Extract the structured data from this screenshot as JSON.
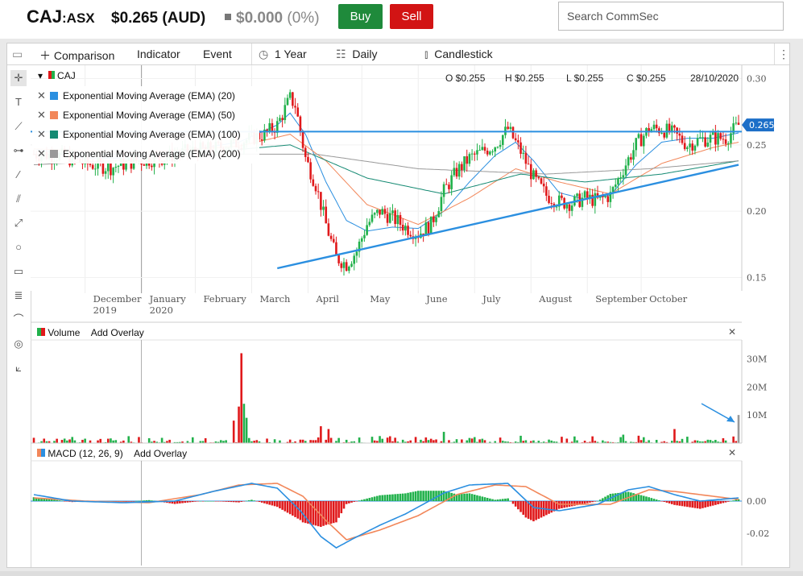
{
  "header": {
    "ticker": "CAJ",
    "exchange": ":ASX",
    "price": "$0.265 (AUD)",
    "change_value": "$0.000",
    "change_pct": "(0%)",
    "buy_label": "Buy",
    "sell_label": "Sell",
    "search_placeholder": "Search CommSec"
  },
  "toolbar": {
    "comparison": "Comparison",
    "indicator": "Indicator",
    "event": "Event",
    "period": "1 Year",
    "interval": "Daily",
    "chart_type": "Candlestick"
  },
  "main_panel": {
    "symbol": "CAJ",
    "open": "O $0.255",
    "high": "H $0.255",
    "low": "L $0.255",
    "close": "C $0.255",
    "date": "28/10/2020",
    "legend": [
      {
        "label": "Exponential Moving Average (EMA) (20)",
        "color": "#2b8fe0"
      },
      {
        "label": "Exponential Moving Average (EMA) (50)",
        "color": "#f2875a"
      },
      {
        "label": "Exponential Moving Average (EMA) (100)",
        "color": "#158a73"
      },
      {
        "label": "Exponential Moving Average (EMA) (200)",
        "color": "#999999"
      }
    ],
    "last_price_tag": "0.265"
  },
  "volume_panel": {
    "title": "Volume",
    "add_overlay": "Add Overlay"
  },
  "macd_panel": {
    "title": "MACD (12, 26, 9)",
    "add_overlay": "Add Overlay"
  },
  "colors": {
    "up": "#21b14b",
    "down": "#e0191b",
    "trend": "#2b8fe0"
  },
  "chart_data": [
    {
      "type": "candlestick",
      "title": "CAJ",
      "x_ticks": [
        "December 2019",
        "January 2020",
        "February",
        "March",
        "April",
        "May",
        "June",
        "July",
        "August",
        "September",
        "October"
      ],
      "y_ticks": [
        0.15,
        0.2,
        0.25,
        0.3
      ],
      "ylim": [
        0.14,
        0.31
      ],
      "price_path": [
        [
          0,
          0.243
        ],
        [
          10,
          0.242
        ],
        [
          20,
          0.236
        ],
        [
          30,
          0.233
        ],
        [
          40,
          0.238
        ],
        [
          50,
          0.24
        ],
        [
          60,
          0.245
        ],
        [
          70,
          0.247
        ],
        [
          80,
          0.252
        ],
        [
          90,
          0.258
        ],
        [
          95,
          0.265
        ],
        [
          100,
          0.285
        ],
        [
          102,
          0.28
        ],
        [
          106,
          0.24
        ],
        [
          110,
          0.22
        ],
        [
          114,
          0.19
        ],
        [
          118,
          0.165
        ],
        [
          122,
          0.16
        ],
        [
          126,
          0.17
        ],
        [
          130,
          0.19
        ],
        [
          135,
          0.2
        ],
        [
          140,
          0.195
        ],
        [
          145,
          0.188
        ],
        [
          150,
          0.183
        ],
        [
          155,
          0.19
        ],
        [
          160,
          0.215
        ],
        [
          165,
          0.23
        ],
        [
          170,
          0.24
        ],
        [
          175,
          0.245
        ],
        [
          180,
          0.25
        ],
        [
          185,
          0.262
        ],
        [
          190,
          0.245
        ],
        [
          195,
          0.225
        ],
        [
          200,
          0.212
        ],
        [
          205,
          0.207
        ],
        [
          210,
          0.206
        ],
        [
          215,
          0.21
        ],
        [
          220,
          0.208
        ],
        [
          225,
          0.212
        ],
        [
          230,
          0.232
        ],
        [
          235,
          0.25
        ],
        [
          240,
          0.262
        ],
        [
          245,
          0.262
        ],
        [
          250,
          0.258
        ],
        [
          255,
          0.25
        ],
        [
          260,
          0.254
        ],
        [
          265,
          0.255
        ],
        [
          270,
          0.255
        ],
        [
          275,
          0.265
        ]
      ],
      "ema": [
        {
          "name": "Exponential Moving Average (EMA) (20)",
          "values": [
            [
              0,
              0.247
            ],
            [
              20,
              0.24
            ],
            [
              40,
              0.24
            ],
            [
              60,
              0.246
            ],
            [
              80,
              0.252
            ],
            [
              95,
              0.265
            ],
            [
              100,
              0.274
            ],
            [
              106,
              0.258
            ],
            [
              114,
              0.222
            ],
            [
              122,
              0.193
            ],
            [
              130,
              0.185
            ],
            [
              140,
              0.188
            ],
            [
              150,
              0.187
            ],
            [
              160,
              0.2
            ],
            [
              170,
              0.222
            ],
            [
              180,
              0.242
            ],
            [
              188,
              0.252
            ],
            [
              195,
              0.238
            ],
            [
              205,
              0.214
            ],
            [
              215,
              0.209
            ],
            [
              225,
              0.212
            ],
            [
              235,
              0.235
            ],
            [
              245,
              0.252
            ],
            [
              255,
              0.255
            ],
            [
              265,
              0.255
            ],
            [
              275,
              0.259
            ]
          ]
        },
        {
          "name": "Exponential Moving Average (EMA) (50)",
          "values": [
            [
              0,
              0.247
            ],
            [
              40,
              0.244
            ],
            [
              80,
              0.249
            ],
            [
              100,
              0.258
            ],
            [
              114,
              0.238
            ],
            [
              130,
              0.205
            ],
            [
              150,
              0.19
            ],
            [
              170,
              0.21
            ],
            [
              188,
              0.232
            ],
            [
              205,
              0.222
            ],
            [
              225,
              0.213
            ],
            [
              245,
              0.236
            ],
            [
              265,
              0.248
            ],
            [
              275,
              0.252
            ]
          ]
        },
        {
          "name": "Exponential Moving Average (EMA) (100)",
          "values": [
            [
              0,
              0.243
            ],
            [
              60,
              0.243
            ],
            [
              100,
              0.25
            ],
            [
              130,
              0.225
            ],
            [
              160,
              0.213
            ],
            [
              190,
              0.228
            ],
            [
              215,
              0.222
            ],
            [
              245,
              0.228
            ],
            [
              275,
              0.238
            ]
          ]
        },
        {
          "name": "Exponential Moving Average (EMA) (200)",
          "values": [
            [
              0,
              0.235
            ],
            [
              80,
              0.243
            ],
            [
              110,
              0.243
            ],
            [
              150,
              0.232
            ],
            [
              200,
              0.228
            ],
            [
              240,
              0.232
            ],
            [
              275,
              0.238
            ]
          ]
        }
      ],
      "horizontal_line": 0.26,
      "trend_line": [
        [
          95,
          0.157
        ],
        [
          275,
          0.235
        ]
      ]
    },
    {
      "type": "bar",
      "title": "Volume",
      "y_ticks": [
        "10M",
        "20M",
        "30M"
      ],
      "spikes": [
        [
          78,
          8
        ],
        [
          80,
          13
        ],
        [
          81,
          32
        ],
        [
          82,
          14
        ],
        [
          83,
          9
        ],
        [
          112,
          6
        ],
        [
          115,
          5
        ],
        [
          160,
          4
        ],
        [
          230,
          3
        ],
        [
          250,
          5
        ],
        [
          275,
          10
        ]
      ]
    },
    {
      "type": "line",
      "title": "MACD (12, 26, 9)",
      "y_ticks": [
        0.0,
        -0.02
      ],
      "macd": [
        [
          0,
          0.004
        ],
        [
          15,
          0.0
        ],
        [
          35,
          -0.001
        ],
        [
          55,
          0.0
        ],
        [
          70,
          0.006
        ],
        [
          85,
          0.011
        ],
        [
          95,
          0.008
        ],
        [
          104,
          -0.006
        ],
        [
          112,
          -0.022
        ],
        [
          118,
          -0.029
        ],
        [
          125,
          -0.023
        ],
        [
          135,
          -0.015
        ],
        [
          145,
          -0.008
        ],
        [
          160,
          0.005
        ],
        [
          170,
          0.01
        ],
        [
          185,
          0.011
        ],
        [
          195,
          -0.004
        ],
        [
          205,
          -0.006
        ],
        [
          220,
          -0.002
        ],
        [
          232,
          0.007
        ],
        [
          240,
          0.009
        ],
        [
          250,
          0.004
        ],
        [
          260,
          0.0
        ],
        [
          275,
          0.002
        ]
      ],
      "signal": [
        [
          0,
          0.002
        ],
        [
          20,
          0.0
        ],
        [
          45,
          -0.001
        ],
        [
          65,
          0.004
        ],
        [
          80,
          0.01
        ],
        [
          95,
          0.011
        ],
        [
          105,
          0.003
        ],
        [
          114,
          -0.012
        ],
        [
          122,
          -0.024
        ],
        [
          135,
          -0.018
        ],
        [
          150,
          -0.009
        ],
        [
          165,
          0.004
        ],
        [
          180,
          0.01
        ],
        [
          192,
          0.009
        ],
        [
          205,
          -0.002
        ],
        [
          225,
          -0.002
        ],
        [
          240,
          0.007
        ],
        [
          250,
          0.006
        ],
        [
          275,
          0.001
        ]
      ]
    }
  ]
}
